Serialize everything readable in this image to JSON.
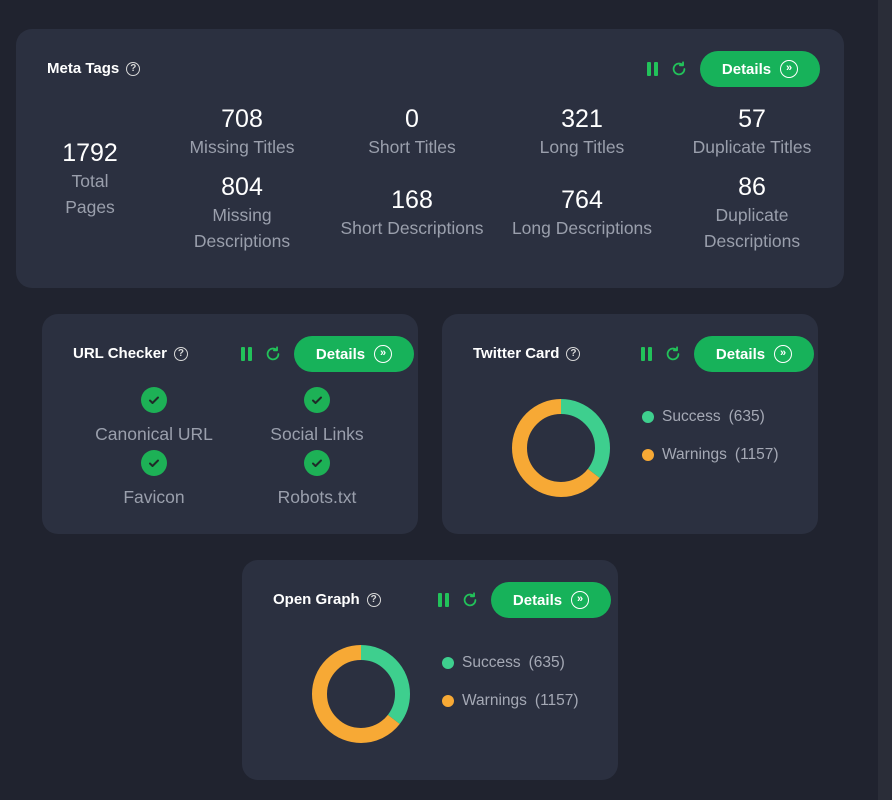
{
  "colors": {
    "background": "#20232f",
    "card": "#2b3040",
    "accent_green": "#17b25a",
    "success": "#3ecf8e",
    "warning": "#f7a935"
  },
  "meta_tags": {
    "title": "Meta Tags",
    "details_label": "Details",
    "total": {
      "value": "1792",
      "label_line1": "Total",
      "label_line2": "Pages"
    },
    "stats_row1": [
      {
        "value": "708",
        "label": "Missing Titles"
      },
      {
        "value": "0",
        "label": "Short Titles"
      },
      {
        "value": "321",
        "label": "Long Titles"
      },
      {
        "value": "57",
        "label": "Duplicate Titles"
      }
    ],
    "stats_row2": [
      {
        "value": "804",
        "label_line1": "Missing",
        "label_line2": "Descriptions"
      },
      {
        "value": "168",
        "label_line1": "Short Descriptions",
        "label_line2": ""
      },
      {
        "value": "764",
        "label_line1": "Long Descriptions",
        "label_line2": ""
      },
      {
        "value": "86",
        "label_line1": "Duplicate",
        "label_line2": "Descriptions"
      }
    ]
  },
  "url_checker": {
    "title": "URL Checker",
    "details_label": "Details",
    "items": [
      "Canonical URL",
      "Social Links",
      "Favicon",
      "Robots.txt"
    ]
  },
  "twitter_card": {
    "title": "Twitter Card",
    "details_label": "Details",
    "success": {
      "label": "Success",
      "count": "(635)",
      "value": 635
    },
    "warnings": {
      "label": "Warnings",
      "count": "(1157)",
      "value": 1157
    }
  },
  "open_graph": {
    "title": "Open Graph",
    "details_label": "Details",
    "success": {
      "label": "Success",
      "count": "(635)",
      "value": 635
    },
    "warnings": {
      "label": "Warnings",
      "count": "(1157)",
      "value": 1157
    }
  },
  "icons": {
    "help": "question-circle-icon",
    "pause": "pause-icon",
    "refresh": "refresh-icon",
    "details": "double-chevron-right-icon",
    "check": "check-circle-icon"
  }
}
